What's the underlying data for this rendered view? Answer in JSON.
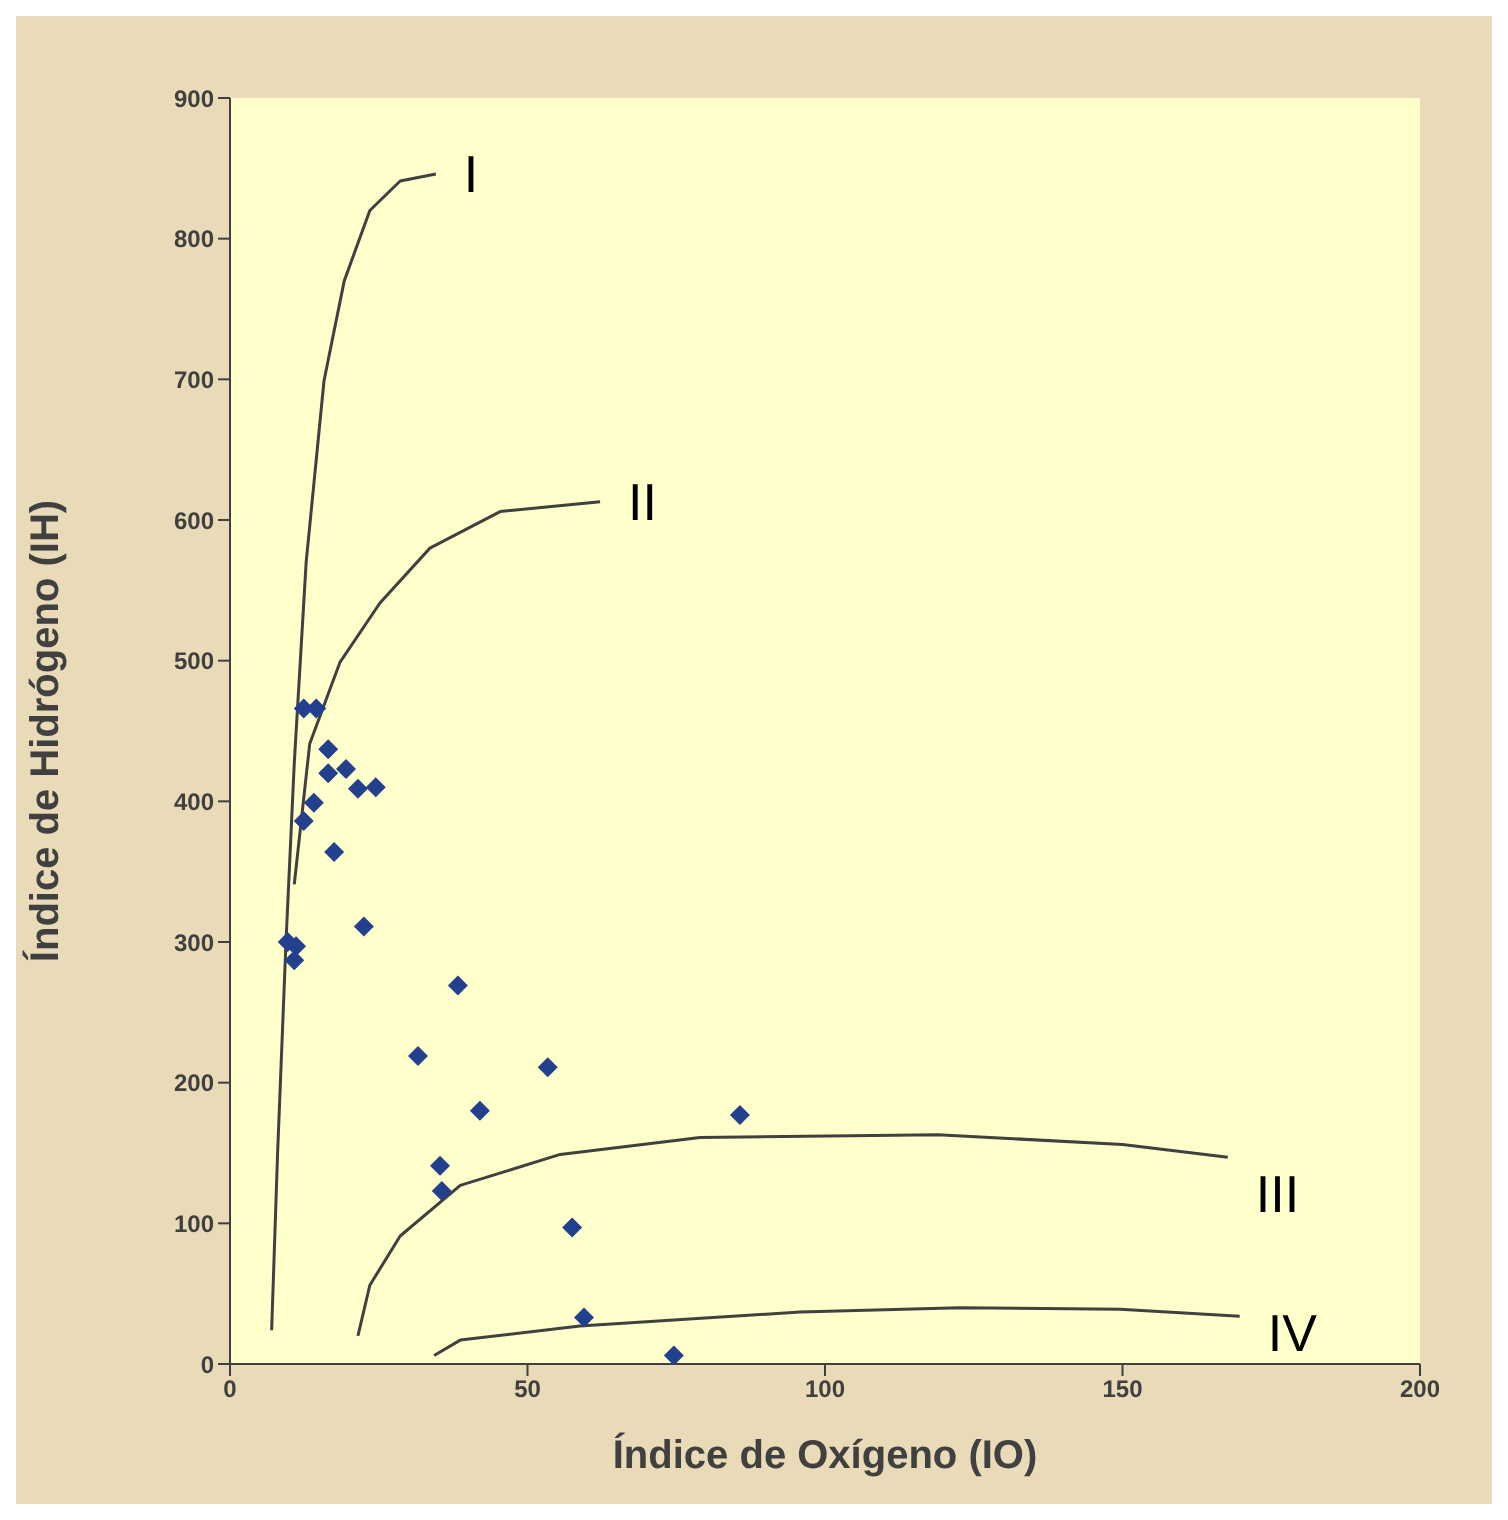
{
  "chart_data": {
    "type": "scatter",
    "xlabel": "Índice de Oxígeno (IO)",
    "ylabel": "Índice de Hidrógeno (IH)",
    "xlim": [
      0,
      200
    ],
    "xticks": [
      0,
      50,
      100,
      150,
      200
    ],
    "ylim": [
      0,
      900
    ],
    "yticks": [
      0,
      100,
      200,
      300,
      400,
      500,
      600,
      700,
      800,
      900
    ],
    "grid": false,
    "legend": false,
    "series": [
      {
        "marker": "diamond",
        "color": "#23408e",
        "x": [
          9.7,
          11.1,
          10.8,
          12.4,
          14.5,
          16.5,
          16.5,
          19.5,
          14.1,
          12.4,
          21.5,
          24.5,
          17.5,
          22.5,
          38.3,
          31.6,
          53.4,
          42,
          85.7,
          35.3,
          35.6,
          57.5,
          59.5,
          74.6
        ],
        "values": [
          300,
          297,
          287,
          466,
          466,
          437,
          420,
          423,
          399,
          386,
          409,
          410,
          364,
          311,
          269,
          219,
          211,
          180,
          177,
          141,
          123,
          97,
          33,
          6
        ]
      },
      {
        "type": "line",
        "color": "#404040",
        "x": [
          7,
          8,
          9.4,
          10.8,
          12.8,
          15.8,
          19.2,
          23.5,
          28.6,
          34.6
        ],
        "values": [
          24,
          150,
          299,
          427,
          570,
          699,
          770,
          820,
          841,
          846
        ]
      },
      {
        "type": "line",
        "color": "#404040",
        "x": [
          10.8,
          13.4,
          18.5,
          25.2,
          33.6,
          45.4,
          62.2
        ],
        "values": [
          341,
          441,
          499,
          541,
          580,
          606,
          613
        ]
      },
      {
        "type": "line",
        "color": "#404040",
        "x": [
          21.5,
          23.5,
          28.6,
          38.7,
          55.5,
          79,
          119,
          150,
          167.7
        ],
        "values": [
          20,
          56,
          91,
          127,
          149,
          161,
          163,
          156,
          147
        ]
      },
      {
        "type": "line",
        "color": "#404040",
        "x": [
          34.3,
          38.7,
          58.8,
          95.8,
          122.7,
          149.6,
          169.7
        ],
        "values": [
          6,
          17,
          27,
          37,
          40,
          39,
          34
        ]
      }
    ],
    "annotations": [
      "I",
      "II",
      "III",
      "IV"
    ]
  }
}
